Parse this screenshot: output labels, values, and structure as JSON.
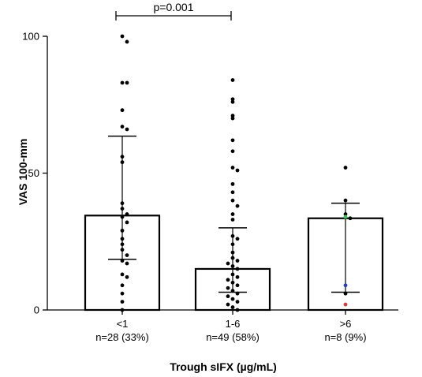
{
  "chart_data": {
    "type": "bar",
    "xlabel": "Trough sIFX (µg/mL)",
    "ylabel": "VAS 100-mm",
    "ylim": [
      0,
      100
    ],
    "yticks": [
      0,
      50,
      100
    ],
    "grid": false,
    "categories": [
      {
        "label": "<1",
        "sublabel": "n=28 (33%)"
      },
      {
        "label": "1-6",
        "sublabel": "n=49 (58%)"
      },
      {
        "label": ">6",
        "sublabel": "n=8 (9%)"
      }
    ],
    "bars": [
      {
        "value": 34.5,
        "err_low": 18.5,
        "err_high": 63.5
      },
      {
        "value": 15,
        "err_low": 6.5,
        "err_high": 30
      },
      {
        "value": 33.5,
        "err_low": 6.5,
        "err_high": 39
      }
    ],
    "points": [
      [
        {
          "y": 100
        },
        {
          "y": 98
        },
        {
          "y": 83
        },
        {
          "y": 83
        },
        {
          "y": 73
        },
        {
          "y": 67
        },
        {
          "y": 66
        },
        {
          "y": 56
        },
        {
          "y": 54
        },
        {
          "y": 39
        },
        {
          "y": 37
        },
        {
          "y": 35
        },
        {
          "y": 34
        },
        {
          "y": 32
        },
        {
          "y": 29
        },
        {
          "y": 26
        },
        {
          "y": 24
        },
        {
          "y": 22
        },
        {
          "y": 20
        },
        {
          "y": 18
        },
        {
          "y": 17
        },
        {
          "y": 13
        },
        {
          "y": 12
        },
        {
          "y": 9
        },
        {
          "y": 6
        },
        {
          "y": 3
        },
        {
          "y": 0
        }
      ],
      [
        {
          "y": 84
        },
        {
          "y": 77
        },
        {
          "y": 76
        },
        {
          "y": 71
        },
        {
          "y": 70
        },
        {
          "y": 62
        },
        {
          "y": 58
        },
        {
          "y": 52
        },
        {
          "y": 51
        },
        {
          "y": 46
        },
        {
          "y": 43
        },
        {
          "y": 40
        },
        {
          "y": 38
        },
        {
          "y": 35
        },
        {
          "y": 33
        },
        {
          "y": 27
        },
        {
          "y": 26
        },
        {
          "y": 24
        },
        {
          "y": 21
        },
        {
          "y": 19
        },
        {
          "y": 18
        },
        {
          "y": 17
        },
        {
          "y": 16
        },
        {
          "y": 15
        },
        {
          "y": 13
        },
        {
          "y": 12
        },
        {
          "y": 11
        },
        {
          "y": 10
        },
        {
          "y": 9
        },
        {
          "y": 8
        },
        {
          "y": 7
        },
        {
          "y": 6
        },
        {
          "y": 5
        },
        {
          "y": 4
        },
        {
          "y": 3
        },
        {
          "y": 2
        },
        {
          "y": 1
        },
        {
          "y": 0
        }
      ],
      [
        {
          "y": 52,
          "color": "#000000"
        },
        {
          "y": 40,
          "color": "#000000"
        },
        {
          "y": 35,
          "color": "#000000"
        },
        {
          "y": 34,
          "color": "#2ecc40"
        },
        {
          "y": 33.5,
          "color": "#000000"
        },
        {
          "y": 9,
          "color": "#1f3bd1"
        },
        {
          "y": 6,
          "color": "#000000"
        },
        {
          "y": 2,
          "color": "#e8303a"
        }
      ]
    ],
    "significance": {
      "from": 0,
      "to": 1,
      "label": "p=0.001"
    }
  },
  "colors": {
    "bar_fill": "#ffffff",
    "stroke": "#000000"
  }
}
